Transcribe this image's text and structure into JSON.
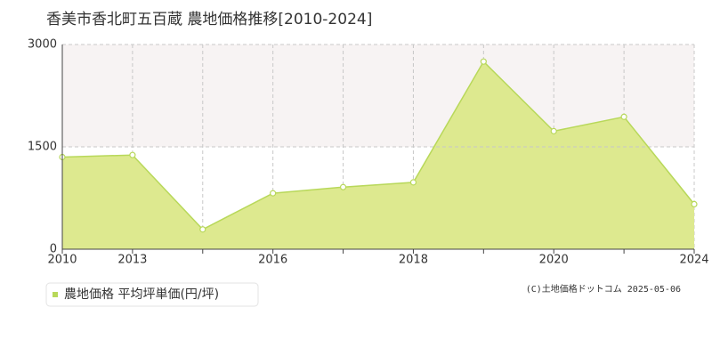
{
  "chart_data": {
    "type": "area",
    "title": "香美市香北町五百蔵 農地価格推移[2010-2024]",
    "categories": [
      "2010",
      "2013",
      null,
      "2016",
      null,
      "2018",
      null,
      "2020",
      null,
      "2024"
    ],
    "series": [
      {
        "name": "農地価格 平均坪単価(円/坪)",
        "color": "#b8d85a",
        "fill": "#dde98f",
        "values": [
          1350,
          1380,
          290,
          820,
          910,
          980,
          2750,
          1730,
          1940,
          660
        ]
      }
    ],
    "ylim": [
      0,
      3000
    ],
    "yticks": [
      0,
      1500,
      3000
    ],
    "grid": true,
    "copyright": "(C)土地価格ドットコム 2025-05-06"
  }
}
